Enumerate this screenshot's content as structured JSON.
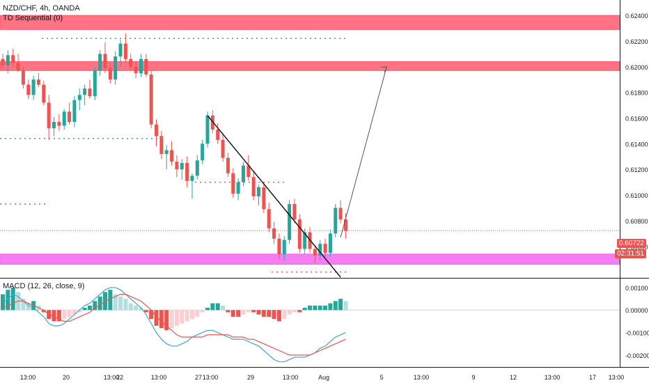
{
  "header": {
    "symbol_line": "NZD/CHF, 4h, OANDA",
    "indicator_line": "TD Sequential (0)",
    "macd_line": "MACD (12, 26, close, 9)"
  },
  "price_tags": {
    "last_price": "0.60722",
    "countdown": "02:31:51"
  },
  "colors": {
    "up": "#26a69a",
    "down": "#ef5350",
    "zone_red": "#ff5b6e",
    "zone_magenta": "#f266f2",
    "signal": "#ef5350",
    "macd": "#3fa7c9"
  },
  "chart_data": {
    "type": "candlestick",
    "price_axis": {
      "min": 0.6036,
      "max": 0.6252,
      "ticks": [
        "0.62400",
        "0.62200",
        "0.62000",
        "0.61800",
        "0.61600",
        "0.61400",
        "0.61200",
        "0.61000",
        "0.60800",
        "0.60600"
      ]
    },
    "macd_axis": {
      "min": -0.0025,
      "max": 0.0014,
      "ticks": [
        "0.00100",
        "0.00000",
        "-0.00100",
        "-0.00200"
      ]
    },
    "time_labels": [
      "13:00",
      "20",
      "13:00",
      "22",
      "13:00",
      "27",
      "13:00",
      "29",
      "13:00",
      "Aug",
      "5",
      "13:00",
      "9",
      "12",
      "13:00",
      "17",
      "13:00"
    ],
    "zones": [
      {
        "kind": "resistance",
        "low": 0.6229,
        "high": 0.624
      },
      {
        "kind": "resistance",
        "low": 0.6197,
        "high": 0.6204
      },
      {
        "kind": "support",
        "low": 0.6046,
        "high": 0.6054
      }
    ],
    "candles": [
      [
        0.6206,
        0.621,
        0.6198,
        0.6201
      ],
      [
        0.6201,
        0.6213,
        0.6195,
        0.6209
      ],
      [
        0.6209,
        0.6214,
        0.6199,
        0.6203
      ],
      [
        0.6203,
        0.621,
        0.6196,
        0.6197
      ],
      [
        0.6197,
        0.62,
        0.6183,
        0.6186
      ],
      [
        0.6186,
        0.619,
        0.6175,
        0.6178
      ],
      [
        0.6178,
        0.6193,
        0.6174,
        0.619
      ],
      [
        0.619,
        0.6195,
        0.6184,
        0.6186
      ],
      [
        0.6186,
        0.6189,
        0.617,
        0.6172
      ],
      [
        0.6172,
        0.6178,
        0.6143,
        0.6152
      ],
      [
        0.6152,
        0.6161,
        0.6146,
        0.6157
      ],
      [
        0.6157,
        0.6163,
        0.615,
        0.6154
      ],
      [
        0.6154,
        0.6167,
        0.6151,
        0.6165
      ],
      [
        0.6165,
        0.6172,
        0.6155,
        0.6157
      ],
      [
        0.6157,
        0.6177,
        0.6153,
        0.6174
      ],
      [
        0.6174,
        0.6183,
        0.6166,
        0.6178
      ],
      [
        0.6178,
        0.6186,
        0.617,
        0.6183
      ],
      [
        0.6183,
        0.619,
        0.6175,
        0.6177
      ],
      [
        0.6177,
        0.62,
        0.6174,
        0.6197
      ],
      [
        0.6197,
        0.6213,
        0.6193,
        0.621
      ],
      [
        0.621,
        0.6219,
        0.6195,
        0.6199
      ],
      [
        0.6199,
        0.6203,
        0.6187,
        0.619
      ],
      [
        0.619,
        0.6212,
        0.6186,
        0.6208
      ],
      [
        0.6208,
        0.6221,
        0.62,
        0.6218
      ],
      [
        0.6218,
        0.6226,
        0.6203,
        0.6206
      ],
      [
        0.6206,
        0.621,
        0.6197,
        0.62
      ],
      [
        0.62,
        0.6204,
        0.6191,
        0.6195
      ],
      [
        0.6195,
        0.621,
        0.6192,
        0.6206
      ],
      [
        0.6206,
        0.621,
        0.6192,
        0.6194
      ],
      [
        0.6194,
        0.6197,
        0.6152,
        0.6155
      ],
      [
        0.6155,
        0.6159,
        0.6138,
        0.6146
      ],
      [
        0.6146,
        0.615,
        0.6128,
        0.6132
      ],
      [
        0.6132,
        0.6139,
        0.612,
        0.6135
      ],
      [
        0.6135,
        0.6142,
        0.6123,
        0.6126
      ],
      [
        0.6126,
        0.6131,
        0.6114,
        0.612
      ],
      [
        0.612,
        0.6128,
        0.6112,
        0.6125
      ],
      [
        0.6125,
        0.613,
        0.6106,
        0.6111
      ],
      [
        0.6111,
        0.6117,
        0.6097,
        0.6115
      ],
      [
        0.6115,
        0.6131,
        0.6112,
        0.6127
      ],
      [
        0.6127,
        0.6143,
        0.6124,
        0.614
      ],
      [
        0.614,
        0.6165,
        0.6137,
        0.6162
      ],
      [
        0.6162,
        0.6166,
        0.6148,
        0.6151
      ],
      [
        0.6151,
        0.6156,
        0.614,
        0.6143
      ],
      [
        0.6143,
        0.6148,
        0.6126,
        0.6129
      ],
      [
        0.6129,
        0.6133,
        0.6114,
        0.6117
      ],
      [
        0.6117,
        0.6121,
        0.6098,
        0.6101
      ],
      [
        0.6101,
        0.6113,
        0.6096,
        0.611
      ],
      [
        0.611,
        0.6126,
        0.6107,
        0.6123
      ],
      [
        0.6123,
        0.6131,
        0.6111,
        0.6114
      ],
      [
        0.6114,
        0.6118,
        0.6096,
        0.6099
      ],
      [
        0.6099,
        0.6108,
        0.6092,
        0.6106
      ],
      [
        0.6106,
        0.611,
        0.6086,
        0.6089
      ],
      [
        0.6089,
        0.6094,
        0.6071,
        0.6074
      ],
      [
        0.6074,
        0.6079,
        0.6062,
        0.6066
      ],
      [
        0.6066,
        0.607,
        0.605,
        0.6054
      ],
      [
        0.6054,
        0.6068,
        0.6049,
        0.6065
      ],
      [
        0.6065,
        0.6096,
        0.6062,
        0.6093
      ],
      [
        0.6093,
        0.6097,
        0.6078,
        0.6081
      ],
      [
        0.6081,
        0.6085,
        0.6055,
        0.6058
      ],
      [
        0.6058,
        0.6074,
        0.6054,
        0.6071
      ],
      [
        0.6071,
        0.6075,
        0.6055,
        0.6058
      ],
      [
        0.6058,
        0.6061,
        0.6047,
        0.6053
      ],
      [
        0.6053,
        0.6065,
        0.6049,
        0.6062
      ],
      [
        0.6062,
        0.6066,
        0.6052,
        0.6055
      ],
      [
        0.6055,
        0.6073,
        0.6052,
        0.607
      ],
      [
        0.607,
        0.6093,
        0.6067,
        0.609
      ],
      [
        0.609,
        0.6096,
        0.6078,
        0.6081
      ],
      [
        0.6081,
        0.6086,
        0.6066,
        0.6072
      ]
    ],
    "macd_histogram": [
      0.0007,
      0.0009,
      0.001,
      0.0008,
      0.0005,
      0.0003,
      0.0004,
      0.0002,
      -0.0001,
      -0.0004,
      -0.0005,
      -0.0005,
      -0.0004,
      -0.0003,
      -0.0002,
      -0.0001,
      0.0001,
      0.0002,
      0.0004,
      0.0006,
      0.0008,
      0.0009,
      0.0007,
      0.0006,
      0.0005,
      0.0003,
      0.0002,
      0.0001,
      -0.0001,
      -0.0004,
      -0.0007,
      -0.0008,
      -0.0009,
      -0.0008,
      -0.0007,
      -0.0006,
      -0.0005,
      -0.0004,
      -0.0003,
      -0.0001,
      0.0001,
      0.0003,
      0.0003,
      0.0002,
      -0.0001,
      -0.0003,
      -0.0003,
      -0.0002,
      -0.0001,
      -0.0001,
      -0.0002,
      -0.0003,
      -0.0003,
      -0.0004,
      -0.0005,
      -0.0004,
      -0.0002,
      -0.0001,
      -0.0001,
      0.0001,
      0.0002,
      0.0002,
      0.0002,
      0.0002,
      0.0003,
      0.0004,
      0.0005,
      0.0004
    ],
    "macd_line": [
      0.0003,
      0.0005,
      0.0007,
      0.0006,
      0.0004,
      0.0002,
      0.0001,
      -0.0001,
      -0.0003,
      -0.0006,
      -0.0007,
      -0.0007,
      -0.0006,
      -0.0004,
      -0.0002,
      0.0,
      0.0002,
      0.0003,
      0.0005,
      0.0007,
      0.0009,
      0.001,
      0.001,
      0.0009,
      0.0007,
      0.0005,
      0.0003,
      0.0001,
      -0.0002,
      -0.0006,
      -0.001,
      -0.0013,
      -0.0015,
      -0.0016,
      -0.0016,
      -0.0015,
      -0.0014,
      -0.0012,
      -0.0011,
      -0.001,
      -0.0009,
      -0.0009,
      -0.001,
      -0.0011,
      -0.0012,
      -0.0013,
      -0.0013,
      -0.0013,
      -0.0014,
      -0.0015,
      -0.0016,
      -0.0018,
      -0.002,
      -0.0022,
      -0.0023,
      -0.0023,
      -0.0022,
      -0.0021,
      -0.0021,
      -0.0021,
      -0.002,
      -0.0019,
      -0.0017,
      -0.0016,
      -0.0014,
      -0.0012,
      -0.0011,
      -0.001
    ],
    "signal_line": [
      0.0001,
      0.0002,
      0.0003,
      0.0004,
      0.0004,
      0.0003,
      0.0002,
      0.0001,
      0.0,
      -0.0002,
      -0.0003,
      -0.0004,
      -0.0005,
      -0.0005,
      -0.0004,
      -0.0003,
      -0.0002,
      -0.0001,
      0.0001,
      0.0002,
      0.0004,
      0.0005,
      0.0006,
      0.0007,
      0.0007,
      0.0006,
      0.0005,
      0.0004,
      0.0002,
      0.0,
      -0.0003,
      -0.0005,
      -0.0007,
      -0.0009,
      -0.0011,
      -0.0012,
      -0.0012,
      -0.0012,
      -0.0012,
      -0.0012,
      -0.0011,
      -0.0011,
      -0.0011,
      -0.0011,
      -0.0011,
      -0.0012,
      -0.0012,
      -0.0012,
      -0.0013,
      -0.0013,
      -0.0014,
      -0.0015,
      -0.0016,
      -0.0017,
      -0.0018,
      -0.0019,
      -0.002,
      -0.002,
      -0.002,
      -0.002,
      -0.002,
      -0.0019,
      -0.0018,
      -0.0017,
      -0.0016,
      -0.0015,
      -0.0014,
      -0.0013
    ],
    "last_price": 0.60722,
    "trendline": [
      [
        40,
        0.6162
      ],
      [
        66,
        0.6036
      ]
    ],
    "projection": [
      [
        66,
        0.6067
      ],
      [
        75,
        0.62
      ]
    ]
  }
}
